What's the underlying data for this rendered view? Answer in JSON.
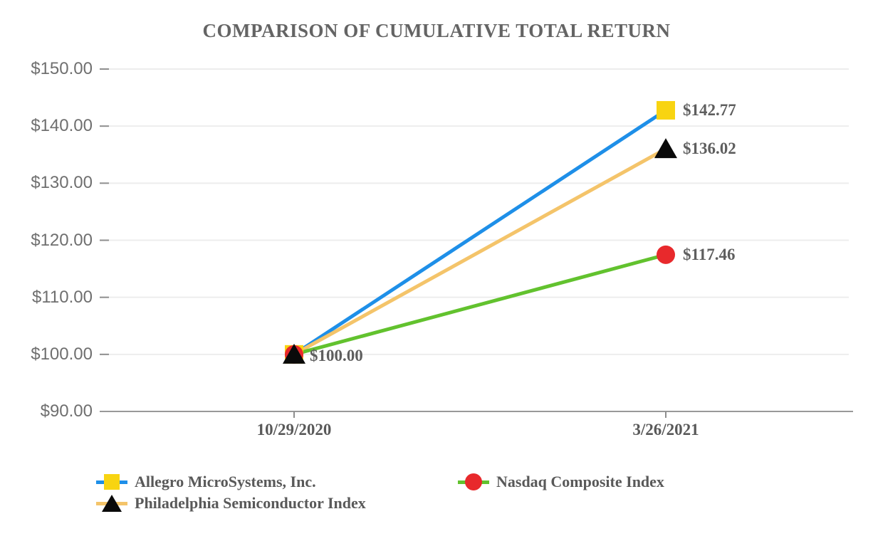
{
  "chart_data": {
    "type": "line",
    "title": "COMPARISON OF CUMULATIVE TOTAL RETURN",
    "x_labels": [
      "10/29/2020",
      "3/26/2021"
    ],
    "y_tick_labels": [
      "$150.00",
      "$140.00",
      "$130.00",
      "$120.00",
      "$110.00",
      "$100.00",
      "$90.00"
    ],
    "y_tick_values": [
      150,
      140,
      130,
      120,
      110,
      100,
      90
    ],
    "ylim": [
      90,
      150
    ],
    "grid": "horizontal-only",
    "legend_position": "bottom-left",
    "start_label": "$100.00",
    "series": [
      {
        "name": "Allegro MicroSystems, Inc.",
        "values": [
          100.0,
          142.77
        ],
        "end_label": "$142.77",
        "line_color": "#1E8FE8",
        "marker": "square",
        "marker_color": "#F8D411"
      },
      {
        "name": "Philadelphia Semiconductor Index",
        "values": [
          100.0,
          136.02
        ],
        "end_label": "$136.02",
        "line_color": "#F4C46A",
        "marker": "triangle",
        "marker_color": "#0A0A0A"
      },
      {
        "name": "Nasdaq Composite Index",
        "values": [
          100.0,
          117.46
        ],
        "end_label": "$117.46",
        "line_color": "#62C22E",
        "marker": "circle",
        "marker_color": "#E8292C"
      }
    ],
    "colors": {
      "gridline": "#EDEDED",
      "axis": "#999999",
      "tick": "#8E8E8E",
      "title_text": "#646464",
      "point_label_text": "#5E5E5E",
      "y_label_text": "#6F6F6F",
      "x_label_text": "#595959",
      "background": "#FFFFFF"
    }
  }
}
